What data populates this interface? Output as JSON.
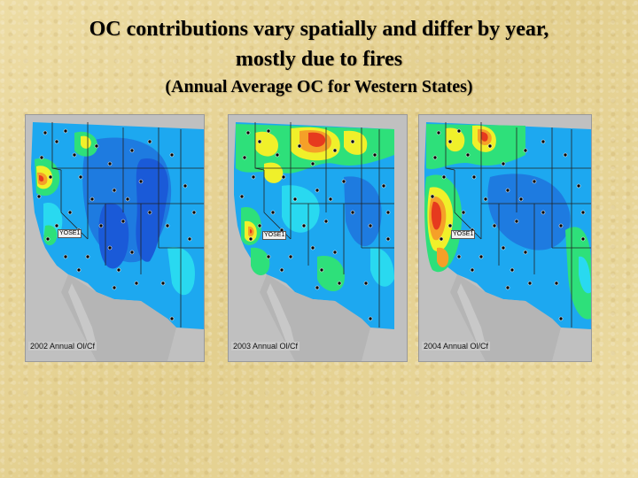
{
  "slide": {
    "title_line1": "OC contributions vary spatially and differ by year,",
    "title_line2": "mostly due to fires",
    "subtitle": "(Annual Average OC for Western States)"
  },
  "maps": [
    {
      "year": "2002",
      "caption": "2002 Annual Ol/Cf",
      "site_label": "YOSE1"
    },
    {
      "year": "2003",
      "caption": "2003 Annual Ol/Cf",
      "site_label": "YOSE1"
    },
    {
      "year": "2004",
      "caption": "2004 Annual Ol/Cf",
      "site_label": "YOSE1"
    }
  ],
  "colors": {
    "land_base": "#1e7be0",
    "low": "#1da8f0",
    "very_low": "#29d9f0",
    "mid": "#2ee07a",
    "high": "#f0f02a",
    "higher": "#f5a028",
    "highest": "#e63a1e",
    "ocean": "#c0c0c0",
    "dark_low": "#1a5ad8"
  }
}
